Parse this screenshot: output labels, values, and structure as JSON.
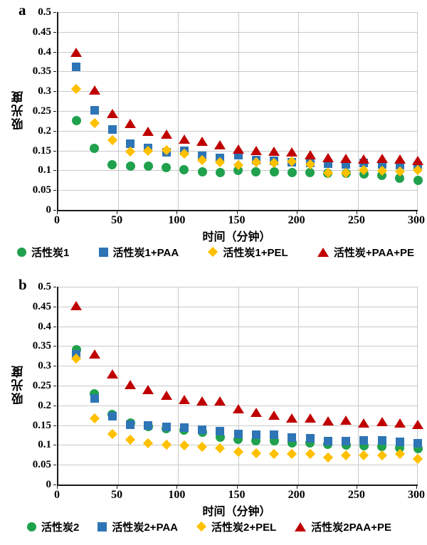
{
  "figure": {
    "description_visible_text_only": true
  },
  "chart_data": [
    {
      "type": "scatter",
      "panel_label": "a",
      "xlabel": "时间（分钟）",
      "ylabel": "吸光度",
      "xlim": [
        0,
        300
      ],
      "ylim": [
        0,
        0.5
      ],
      "x_ticks": [
        0,
        50,
        100,
        150,
        200,
        250,
        300
      ],
      "y_ticks": [
        0,
        0.05,
        0.1,
        0.15,
        0.2,
        0.25,
        0.3,
        0.35,
        0.4,
        0.45,
        0.5
      ],
      "y_tick_labels": [
        "0",
        "0.05",
        "0.1",
        "0.15",
        "0.2",
        "0.25",
        "0.3",
        "0.35",
        "0.4",
        "0.45",
        "0.5"
      ],
      "grid": true,
      "legend_position": "bottom",
      "x": [
        15,
        30,
        45,
        60,
        75,
        90,
        105,
        120,
        135,
        150,
        165,
        180,
        195,
        210,
        225,
        240,
        255,
        270,
        285,
        300
      ],
      "series": [
        {
          "name": "活性炭1",
          "marker": "circle",
          "color": "#1FA14D",
          "values": [
            0.225,
            0.155,
            0.115,
            0.11,
            0.11,
            0.107,
            0.101,
            0.097,
            0.095,
            0.1,
            0.097,
            0.097,
            0.095,
            0.095,
            0.092,
            0.092,
            0.09,
            0.088,
            0.08,
            0.075
          ]
        },
        {
          "name": "活性炭1+PAA",
          "marker": "square",
          "color": "#2E75B6",
          "values": [
            0.362,
            0.251,
            0.203,
            0.168,
            0.157,
            0.145,
            0.15,
            0.137,
            0.132,
            0.139,
            0.126,
            0.124,
            0.121,
            0.119,
            0.117,
            0.116,
            0.118,
            0.116,
            0.113,
            0.111
          ]
        },
        {
          "name": "活性炭1+PEL",
          "marker": "diamond",
          "color": "#FFC000",
          "values": [
            0.305,
            0.22,
            0.177,
            0.148,
            0.15,
            0.151,
            0.142,
            0.126,
            0.12,
            0.114,
            0.12,
            0.119,
            0.123,
            0.115,
            0.094,
            0.094,
            0.1,
            0.099,
            0.098,
            0.1
          ]
        },
        {
          "name": "活性炭+PAA+PE",
          "marker": "triangle",
          "color": "#C00000",
          "values": [
            0.397,
            0.302,
            0.243,
            0.218,
            0.197,
            0.19,
            0.178,
            0.173,
            0.163,
            0.152,
            0.15,
            0.148,
            0.145,
            0.139,
            0.131,
            0.13,
            0.127,
            0.129,
            0.127,
            0.124
          ]
        }
      ]
    },
    {
      "type": "scatter",
      "panel_label": "b",
      "xlabel": "时间（分钟）",
      "ylabel": "吸光度",
      "xlim": [
        0,
        300
      ],
      "ylim": [
        0,
        0.5
      ],
      "x_ticks": [
        0,
        50,
        100,
        150,
        200,
        250,
        300
      ],
      "y_ticks": [
        0,
        0.05,
        0.1,
        0.15,
        0.2,
        0.25,
        0.3,
        0.35,
        0.4,
        0.45,
        0.5
      ],
      "y_tick_labels": [
        "0",
        "0.05",
        "0.1",
        "0.15",
        "0.2",
        "0.25",
        "0.3",
        "0.35",
        "0.4",
        "0.45",
        "0.5"
      ],
      "grid": true,
      "legend_position": "bottom",
      "x": [
        15,
        30,
        45,
        60,
        75,
        90,
        105,
        120,
        135,
        150,
        165,
        180,
        195,
        210,
        225,
        240,
        255,
        270,
        285,
        300
      ],
      "series": [
        {
          "name": "活性炭2",
          "marker": "circle",
          "color": "#1FA14D",
          "values": [
            0.341,
            0.229,
            0.177,
            0.155,
            0.146,
            0.141,
            0.138,
            0.132,
            0.12,
            0.114,
            0.11,
            0.11,
            0.106,
            0.105,
            0.102,
            0.1,
            0.098,
            0.096,
            0.093,
            0.091
          ]
        },
        {
          "name": "活性炭2+PAA",
          "marker": "square",
          "color": "#2E75B6",
          "values": [
            0.329,
            0.218,
            0.172,
            0.151,
            0.149,
            0.145,
            0.143,
            0.138,
            0.134,
            0.128,
            0.126,
            0.126,
            0.118,
            0.117,
            0.11,
            0.11,
            0.112,
            0.111,
            0.108,
            0.105
          ]
        },
        {
          "name": "活性炭2+PEL",
          "marker": "diamond",
          "color": "#FFC000",
          "values": [
            0.318,
            0.168,
            0.127,
            0.113,
            0.105,
            0.1,
            0.099,
            0.095,
            0.091,
            0.083,
            0.08,
            0.078,
            0.078,
            0.078,
            0.068,
            0.073,
            0.073,
            0.073,
            0.077,
            0.065
          ]
        },
        {
          "name": "活性炭2PAA+PE",
          "marker": "triangle",
          "color": "#C00000",
          "values": [
            0.452,
            0.329,
            0.279,
            0.251,
            0.239,
            0.224,
            0.214,
            0.21,
            0.21,
            0.19,
            0.182,
            0.174,
            0.168,
            0.168,
            0.16,
            0.161,
            0.155,
            0.158,
            0.155,
            0.151
          ]
        }
      ]
    }
  ]
}
